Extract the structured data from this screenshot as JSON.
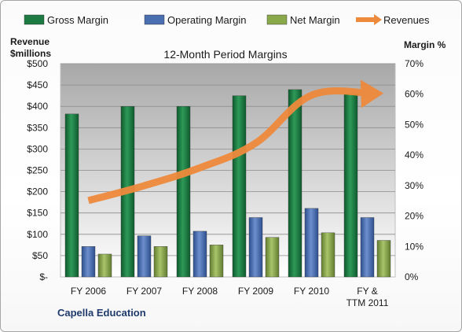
{
  "chart_data": {
    "type": "bar",
    "title": "12-Month Period Margins",
    "company": "Capella Education",
    "categories": [
      "FY 2006",
      "FY 2007",
      "FY 2008",
      "FY 2009",
      "FY 2010",
      "FY & TTM 2011"
    ],
    "left_axis": {
      "label_line1": "Revenue",
      "label_line2": "$millions",
      "range": [
        0,
        500
      ],
      "ticks": [
        "$-",
        "$50",
        "$100",
        "$150",
        "$200",
        "$250",
        "$300",
        "$350",
        "$400",
        "$450",
        "$500"
      ]
    },
    "right_axis": {
      "label": "Margin %",
      "range": [
        0,
        70
      ],
      "ticks": [
        "0%",
        "10%",
        "20%",
        "30%",
        "40%",
        "50%",
        "60%",
        "70%"
      ]
    },
    "series": [
      {
        "name": "Gross Margin",
        "axis": "right",
        "color": "#1e7a43",
        "values": [
          53.5,
          56,
          56,
          59.5,
          61.5,
          60
        ]
      },
      {
        "name": "Operating Margin",
        "axis": "right",
        "color": "#4a6fb0",
        "values": [
          10,
          13.5,
          15,
          19.5,
          22.5,
          19.5
        ]
      },
      {
        "name": "Net Margin",
        "axis": "right",
        "color": "#8aa94b",
        "values": [
          7.5,
          10,
          10.5,
          13,
          14.5,
          12
        ]
      },
      {
        "name": "Revenues",
        "axis": "left",
        "type": "line",
        "color": "#ee8a3c",
        "values": [
          179,
          214,
          256,
          314,
          426,
          430
        ]
      }
    ],
    "grid": true,
    "legend_position": "top"
  }
}
